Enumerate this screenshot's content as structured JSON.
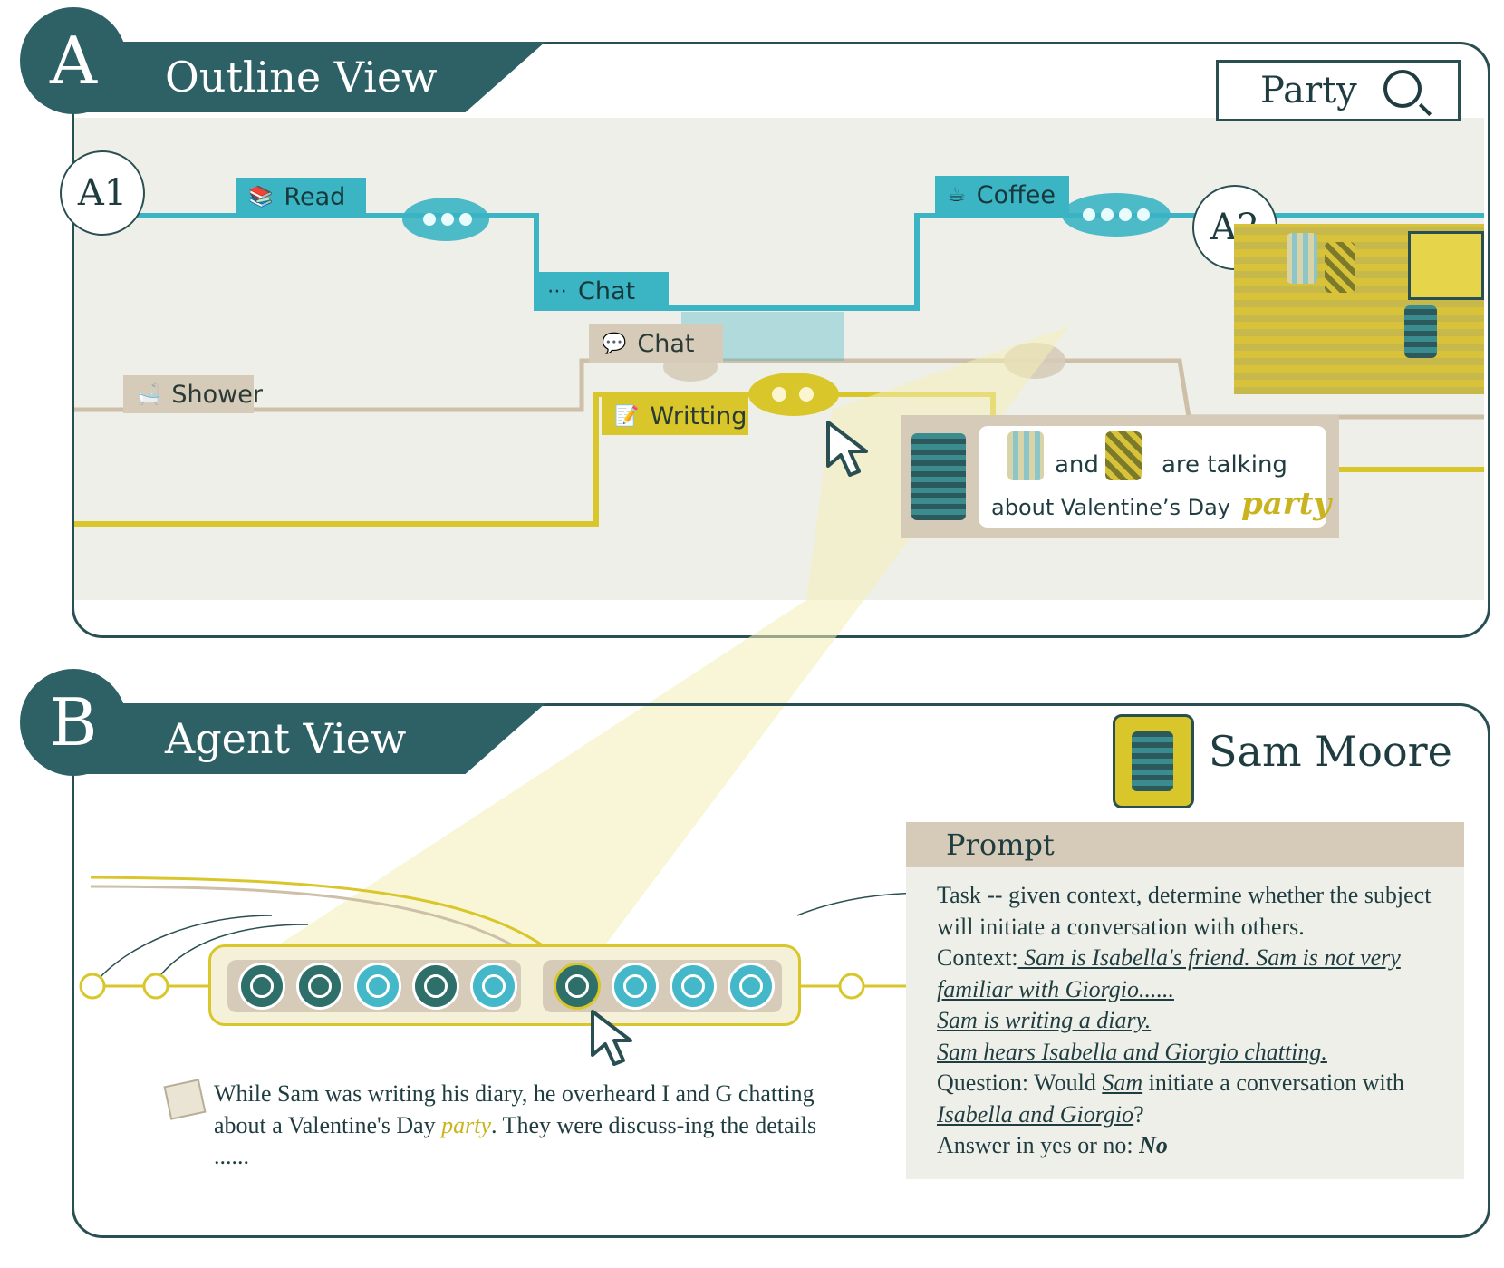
{
  "outline_view": {
    "badge": "A",
    "title": "Outline View",
    "search_value": "Party",
    "marker_a1": "A1",
    "marker_a2": "A2",
    "activities": {
      "read": "Read",
      "chat_teal": "Chat",
      "coffee": "Coffee",
      "chat_beige": "Chat",
      "shower": "Shower",
      "writing": "Writting"
    },
    "speech": {
      "and": "and",
      "talking": "are talking",
      "line2": "about Valentine’s Day",
      "keyword": "party"
    }
  },
  "agent_view": {
    "badge": "B",
    "title": "Agent View",
    "agent_name": "Sam Moore",
    "prompt_header": "Prompt",
    "prompt": {
      "task": "Task -- given context, determine whether the subject will initiate a conversation with others.",
      "context_label": "Context:",
      "context_1": " Sam is Isabella's friend. Sam is not very familiar with Giorgio......",
      "context_2": "Sam is writing a diary. ",
      "context_3": "Sam hears Isabella and Giorgio chatting. ",
      "question_pre": "Question: Would ",
      "question_subject": "Sam",
      "question_mid": " initiate a conversation with ",
      "question_object": "Isabella and Giorgio",
      "question_end": "?",
      "answer_label": "Answer in yes or no: ",
      "answer": "No"
    },
    "narration": {
      "pre": "While Sam was writing his diary, he overheard I and G chatting about a Valentine's Day ",
      "keyword": "party",
      "post": ". They were discuss-ing the details ......"
    }
  },
  "colors": {
    "teal": "#3bb4c4",
    "beige": "#d6cbb8",
    "yellow": "#d9c62a",
    "dark": "#2d6165"
  }
}
